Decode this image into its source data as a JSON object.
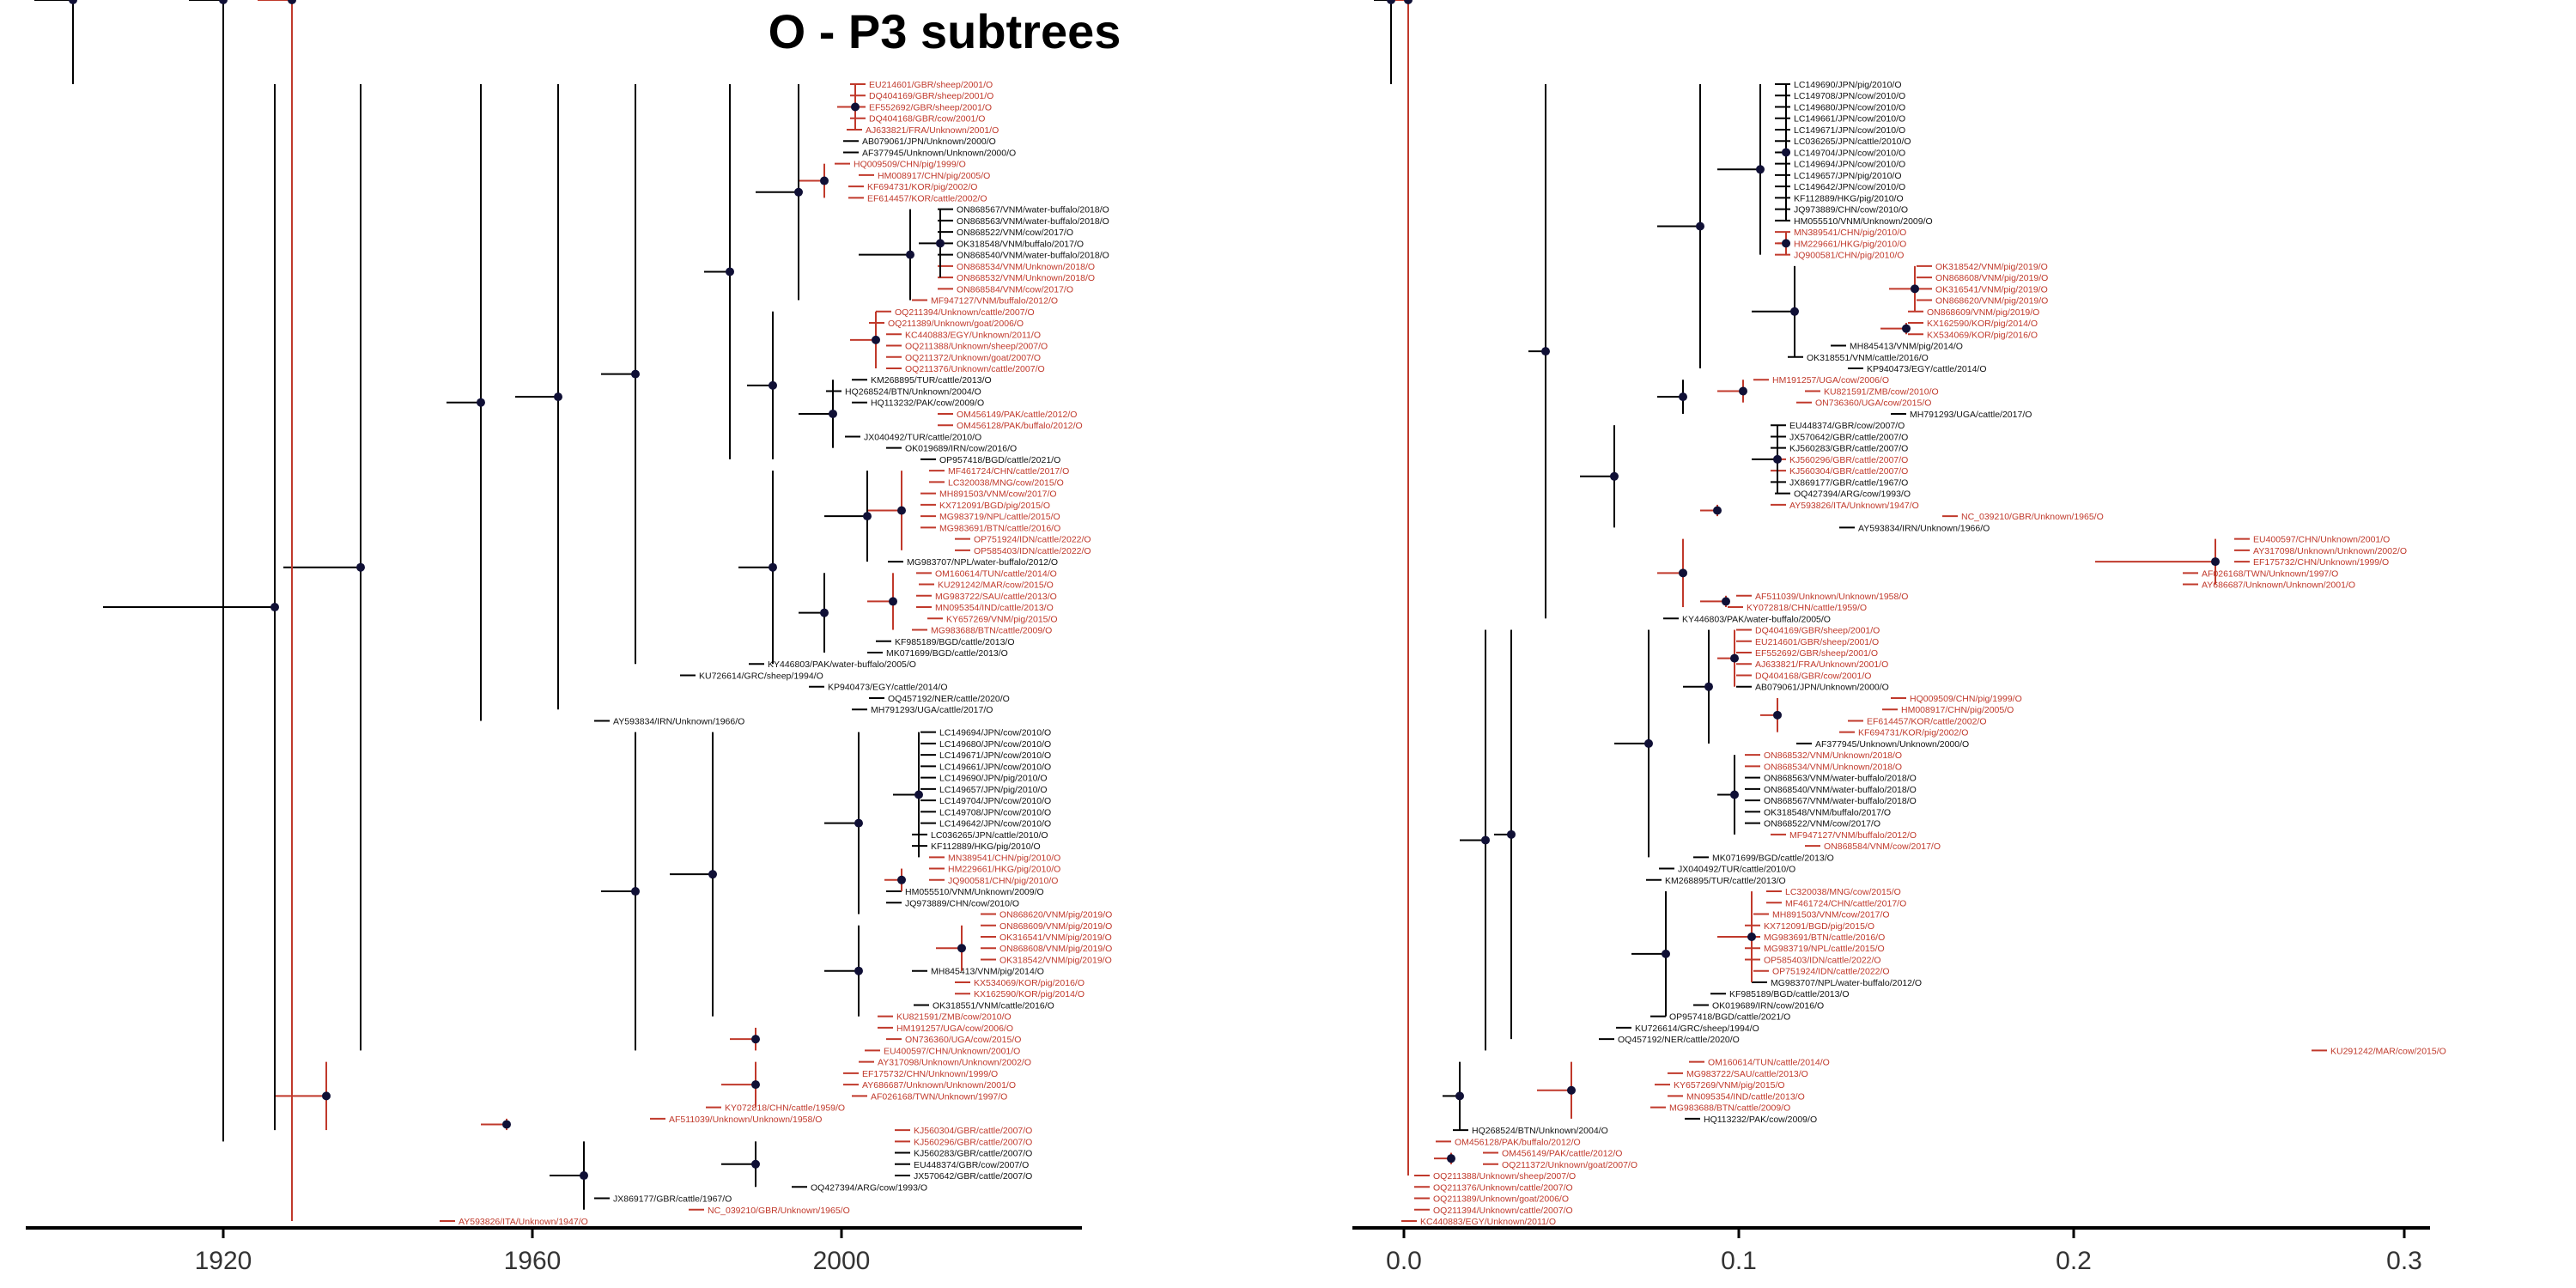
{
  "page": {
    "title": "O - P3 subtrees"
  },
  "colors": {
    "black_branch": "#000000",
    "red_branch": "#c0392b",
    "node": "#101036",
    "axis": "#000000"
  },
  "left_tree": {
    "axis_ticks": [
      "1920",
      "1960",
      "2000"
    ],
    "leaves": [
      {
        "label": "EU214601/GBR/sheep/2001/O",
        "color": "red"
      },
      {
        "label": "DQ404169/GBR/sheep/2001/O",
        "color": "red"
      },
      {
        "label": "EF552692/GBR/sheep/2001/O",
        "color": "red"
      },
      {
        "label": "DQ404168/GBR/cow/2001/O",
        "color": "red"
      },
      {
        "label": "AJ633821/FRA/Unknown/2001/O",
        "color": "red"
      },
      {
        "label": "AB079061/JPN/Unknown/2000/O",
        "color": "black"
      },
      {
        "label": "AF377945/Unknown/Unknown/2000/O",
        "color": "black"
      },
      {
        "label": "HQ009509/CHN/pig/1999/O",
        "color": "red"
      },
      {
        "label": "HM008917/CHN/pig/2005/O",
        "color": "red"
      },
      {
        "label": "KF694731/KOR/pig/2002/O",
        "color": "red"
      },
      {
        "label": "EF614457/KOR/cattle/2002/O",
        "color": "red"
      },
      {
        "label": "ON868567/VNM/water-buffalo/2018/O",
        "color": "black"
      },
      {
        "label": "ON868563/VNM/water-buffalo/2018/O",
        "color": "black"
      },
      {
        "label": "ON868522/VNM/cow/2017/O",
        "color": "black"
      },
      {
        "label": "OK318548/VNM/buffalo/2017/O",
        "color": "black"
      },
      {
        "label": "ON868540/VNM/water-buffalo/2018/O",
        "color": "black"
      },
      {
        "label": "ON868534/VNM/Unknown/2018/O",
        "color": "red"
      },
      {
        "label": "ON868532/VNM/Unknown/2018/O",
        "color": "red"
      },
      {
        "label": "ON868584/VNM/cow/2017/O",
        "color": "red"
      },
      {
        "label": "MF947127/VNM/buffalo/2012/O",
        "color": "red"
      },
      {
        "label": "OQ211394/Unknown/cattle/2007/O",
        "color": "red"
      },
      {
        "label": "OQ211389/Unknown/goat/2006/O",
        "color": "red"
      },
      {
        "label": "KC440883/EGY/Unknown/2011/O",
        "color": "red"
      },
      {
        "label": "OQ211388/Unknown/sheep/2007/O",
        "color": "red"
      },
      {
        "label": "OQ211372/Unknown/goat/2007/O",
        "color": "red"
      },
      {
        "label": "OQ211376/Unknown/cattle/2007/O",
        "color": "red"
      },
      {
        "label": "KM268895/TUR/cattle/2013/O",
        "color": "black"
      },
      {
        "label": "HQ268524/BTN/Unknown/2004/O",
        "color": "black"
      },
      {
        "label": "HQ113232/PAK/cow/2009/O",
        "color": "black"
      },
      {
        "label": "OM456149/PAK/cattle/2012/O",
        "color": "red"
      },
      {
        "label": "OM456128/PAK/buffalo/2012/O",
        "color": "red"
      },
      {
        "label": "JX040492/TUR/cattle/2010/O",
        "color": "black"
      },
      {
        "label": "OK019689/IRN/cow/2016/O",
        "color": "black"
      },
      {
        "label": "OP957418/BGD/cattle/2021/O",
        "color": "black"
      },
      {
        "label": "MF461724/CHN/cattle/2017/O",
        "color": "red"
      },
      {
        "label": "LC320038/MNG/cow/2015/O",
        "color": "red"
      },
      {
        "label": "MH891503/VNM/cow/2017/O",
        "color": "red"
      },
      {
        "label": "KX712091/BGD/pig/2015/O",
        "color": "red"
      },
      {
        "label": "MG983719/NPL/cattle/2015/O",
        "color": "red"
      },
      {
        "label": "MG983691/BTN/cattle/2016/O",
        "color": "red"
      },
      {
        "label": "OP751924/IDN/cattle/2022/O",
        "color": "red"
      },
      {
        "label": "OP585403/IDN/cattle/2022/O",
        "color": "red"
      },
      {
        "label": "MG983707/NPL/water-buffalo/2012/O",
        "color": "black"
      },
      {
        "label": "OM160614/TUN/cattle/2014/O",
        "color": "red"
      },
      {
        "label": "KU291242/MAR/cow/2015/O",
        "color": "red"
      },
      {
        "label": "MG983722/SAU/cattle/2013/O",
        "color": "red"
      },
      {
        "label": "MN095354/IND/cattle/2013/O",
        "color": "red"
      },
      {
        "label": "KY657269/VNM/pig/2015/O",
        "color": "red"
      },
      {
        "label": "MG983688/BTN/cattle/2009/O",
        "color": "red"
      },
      {
        "label": "KF985189/BGD/cattle/2013/O",
        "color": "black"
      },
      {
        "label": "MK071699/BGD/cattle/2013/O",
        "color": "black"
      },
      {
        "label": "KY446803/PAK/water-buffalo/2005/O",
        "color": "black"
      },
      {
        "label": "KU726614/GRC/sheep/1994/O",
        "color": "black"
      },
      {
        "label": "KP940473/EGY/cattle/2014/O",
        "color": "black"
      },
      {
        "label": "OQ457192/NER/cattle/2020/O",
        "color": "black"
      },
      {
        "label": "MH791293/UGA/cattle/2017/O",
        "color": "black"
      },
      {
        "label": "AY593834/IRN/Unknown/1966/O",
        "color": "black"
      },
      {
        "label": "LC149694/JPN/cow/2010/O",
        "color": "black"
      },
      {
        "label": "LC149680/JPN/cow/2010/O",
        "color": "black"
      },
      {
        "label": "LC149671/JPN/cow/2010/O",
        "color": "black"
      },
      {
        "label": "LC149661/JPN/cow/2010/O",
        "color": "black"
      },
      {
        "label": "LC149690/JPN/pig/2010/O",
        "color": "black"
      },
      {
        "label": "LC149657/JPN/pig/2010/O",
        "color": "black"
      },
      {
        "label": "LC149704/JPN/cow/2010/O",
        "color": "black"
      },
      {
        "label": "LC149708/JPN/cow/2010/O",
        "color": "black"
      },
      {
        "label": "LC149642/JPN/cow/2010/O",
        "color": "black"
      },
      {
        "label": "LC036265/JPN/cattle/2010/O",
        "color": "black"
      },
      {
        "label": "KF112889/HKG/pig/2010/O",
        "color": "black"
      },
      {
        "label": "MN389541/CHN/pig/2010/O",
        "color": "red"
      },
      {
        "label": "HM229661/HKG/pig/2010/O",
        "color": "red"
      },
      {
        "label": "JQ900581/CHN/pig/2010/O",
        "color": "red"
      },
      {
        "label": "HM055510/VNM/Unknown/2009/O",
        "color": "black"
      },
      {
        "label": "JQ973889/CHN/cow/2010/O",
        "color": "black"
      },
      {
        "label": "ON868620/VNM/pig/2019/O",
        "color": "red"
      },
      {
        "label": "ON868609/VNM/pig/2019/O",
        "color": "red"
      },
      {
        "label": "OK316541/VNM/pig/2019/O",
        "color": "red"
      },
      {
        "label": "ON868608/VNM/pig/2019/O",
        "color": "red"
      },
      {
        "label": "OK318542/VNM/pig/2019/O",
        "color": "red"
      },
      {
        "label": "MH845413/VNM/pig/2014/O",
        "color": "black"
      },
      {
        "label": "KX534069/KOR/pig/2016/O",
        "color": "red"
      },
      {
        "label": "KX162590/KOR/pig/2014/O",
        "color": "red"
      },
      {
        "label": "OK318551/VNM/cattle/2016/O",
        "color": "black"
      },
      {
        "label": "KU821591/ZMB/cow/2010/O",
        "color": "red"
      },
      {
        "label": "HM191257/UGA/cow/2006/O",
        "color": "red"
      },
      {
        "label": "ON736360/UGA/cow/2015/O",
        "color": "red"
      },
      {
        "label": "EU400597/CHN/Unknown/2001/O",
        "color": "red"
      },
      {
        "label": "AY317098/Unknown/Unknown/2002/O",
        "color": "red"
      },
      {
        "label": "EF175732/CHN/Unknown/1999/O",
        "color": "red"
      },
      {
        "label": "AY686687/Unknown/Unknown/2001/O",
        "color": "red"
      },
      {
        "label": "AF026168/TWN/Unknown/1997/O",
        "color": "red"
      },
      {
        "label": "KY072818/CHN/cattle/1959/O",
        "color": "red"
      },
      {
        "label": "AF511039/Unknown/Unknown/1958/O",
        "color": "red"
      },
      {
        "label": "KJ560304/GBR/cattle/2007/O",
        "color": "red"
      },
      {
        "label": "KJ560296/GBR/cattle/2007/O",
        "color": "red"
      },
      {
        "label": "KJ560283/GBR/cattle/2007/O",
        "color": "black"
      },
      {
        "label": "EU448374/GBR/cow/2007/O",
        "color": "black"
      },
      {
        "label": "JX570642/GBR/cattle/2007/O",
        "color": "black"
      },
      {
        "label": "OQ427394/ARG/cow/1993/O",
        "color": "black"
      },
      {
        "label": "JX869177/GBR/cattle/1967/O",
        "color": "black"
      },
      {
        "label": "NC_039210/GBR/Unknown/1965/O",
        "color": "red"
      },
      {
        "label": "AY593826/ITA/Unknown/1947/O",
        "color": "red"
      }
    ]
  },
  "right_tree": {
    "axis_ticks": [
      "0.0",
      "0.1",
      "0.2",
      "0.3"
    ],
    "leaves": [
      {
        "label": "LC149690/JPN/pig/2010/O",
        "color": "black"
      },
      {
        "label": "LC149708/JPN/cow/2010/O",
        "color": "black"
      },
      {
        "label": "LC149680/JPN/cow/2010/O",
        "color": "black"
      },
      {
        "label": "LC149661/JPN/cow/2010/O",
        "color": "black"
      },
      {
        "label": "LC149671/JPN/cow/2010/O",
        "color": "black"
      },
      {
        "label": "LC036265/JPN/cattle/2010/O",
        "color": "black"
      },
      {
        "label": "LC149704/JPN/cow/2010/O",
        "color": "black"
      },
      {
        "label": "LC149694/JPN/cow/2010/O",
        "color": "black"
      },
      {
        "label": "LC149657/JPN/pig/2010/O",
        "color": "black"
      },
      {
        "label": "LC149642/JPN/cow/2010/O",
        "color": "black"
      },
      {
        "label": "KF112889/HKG/pig/2010/O",
        "color": "black"
      },
      {
        "label": "JQ973889/CHN/cow/2010/O",
        "color": "black"
      },
      {
        "label": "HM055510/VNM/Unknown/2009/O",
        "color": "black"
      },
      {
        "label": "MN389541/CHN/pig/2010/O",
        "color": "red"
      },
      {
        "label": "HM229661/HKG/pig/2010/O",
        "color": "red"
      },
      {
        "label": "JQ900581/CHN/pig/2010/O",
        "color": "red"
      },
      {
        "label": "OK318542/VNM/pig/2019/O",
        "color": "red"
      },
      {
        "label": "ON868608/VNM/pig/2019/O",
        "color": "red"
      },
      {
        "label": "OK316541/VNM/pig/2019/O",
        "color": "red"
      },
      {
        "label": "ON868620/VNM/pig/2019/O",
        "color": "red"
      },
      {
        "label": "ON868609/VNM/pig/2019/O",
        "color": "red"
      },
      {
        "label": "KX162590/KOR/pig/2014/O",
        "color": "red"
      },
      {
        "label": "KX534069/KOR/pig/2016/O",
        "color": "red"
      },
      {
        "label": "MH845413/VNM/pig/2014/O",
        "color": "black"
      },
      {
        "label": "OK318551/VNM/cattle/2016/O",
        "color": "black"
      },
      {
        "label": "KP940473/EGY/cattle/2014/O",
        "color": "black"
      },
      {
        "label": "HM191257/UGA/cow/2006/O",
        "color": "red"
      },
      {
        "label": "KU821591/ZMB/cow/2010/O",
        "color": "red"
      },
      {
        "label": "ON736360/UGA/cow/2015/O",
        "color": "red"
      },
      {
        "label": "MH791293/UGA/cattle/2017/O",
        "color": "black"
      },
      {
        "label": "EU448374/GBR/cow/2007/O",
        "color": "black"
      },
      {
        "label": "JX570642/GBR/cattle/2007/O",
        "color": "black"
      },
      {
        "label": "KJ560283/GBR/cattle/2007/O",
        "color": "black"
      },
      {
        "label": "KJ560296/GBR/cattle/2007/O",
        "color": "red"
      },
      {
        "label": "KJ560304/GBR/cattle/2007/O",
        "color": "red"
      },
      {
        "label": "JX869177/GBR/cattle/1967/O",
        "color": "black"
      },
      {
        "label": "OQ427394/ARG/cow/1993/O",
        "color": "black"
      },
      {
        "label": "AY593826/ITA/Unknown/1947/O",
        "color": "red"
      },
      {
        "label": "NC_039210/GBR/Unknown/1965/O",
        "color": "red"
      },
      {
        "label": "AY593834/IRN/Unknown/1966/O",
        "color": "black"
      },
      {
        "label": "EU400597/CHN/Unknown/2001/O",
        "color": "red"
      },
      {
        "label": "AY317098/Unknown/Unknown/2002/O",
        "color": "red"
      },
      {
        "label": "EF175732/CHN/Unknown/1999/O",
        "color": "red"
      },
      {
        "label": "AF026168/TWN/Unknown/1997/O",
        "color": "red"
      },
      {
        "label": "AY686687/Unknown/Unknown/2001/O",
        "color": "red"
      },
      {
        "label": "AF511039/Unknown/Unknown/1958/O",
        "color": "red"
      },
      {
        "label": "KY072818/CHN/cattle/1959/O",
        "color": "red"
      },
      {
        "label": "KY446803/PAK/water-buffalo/2005/O",
        "color": "black"
      },
      {
        "label": "DQ404169/GBR/sheep/2001/O",
        "color": "red"
      },
      {
        "label": "EU214601/GBR/sheep/2001/O",
        "color": "red"
      },
      {
        "label": "EF552692/GBR/sheep/2001/O",
        "color": "red"
      },
      {
        "label": "AJ633821/FRA/Unknown/2001/O",
        "color": "red"
      },
      {
        "label": "DQ404168/GBR/cow/2001/O",
        "color": "red"
      },
      {
        "label": "AB079061/JPN/Unknown/2000/O",
        "color": "black"
      },
      {
        "label": "HQ009509/CHN/pig/1999/O",
        "color": "red"
      },
      {
        "label": "HM008917/CHN/pig/2005/O",
        "color": "red"
      },
      {
        "label": "EF614457/KOR/cattle/2002/O",
        "color": "red"
      },
      {
        "label": "KF694731/KOR/pig/2002/O",
        "color": "red"
      },
      {
        "label": "AF377945/Unknown/Unknown/2000/O",
        "color": "black"
      },
      {
        "label": "ON868532/VNM/Unknown/2018/O",
        "color": "red"
      },
      {
        "label": "ON868534/VNM/Unknown/2018/O",
        "color": "red"
      },
      {
        "label": "ON868563/VNM/water-buffalo/2018/O",
        "color": "black"
      },
      {
        "label": "ON868540/VNM/water-buffalo/2018/O",
        "color": "black"
      },
      {
        "label": "ON868567/VNM/water-buffalo/2018/O",
        "color": "black"
      },
      {
        "label": "OK318548/VNM/buffalo/2017/O",
        "color": "black"
      },
      {
        "label": "ON868522/VNM/cow/2017/O",
        "color": "black"
      },
      {
        "label": "MF947127/VNM/buffalo/2012/O",
        "color": "red"
      },
      {
        "label": "ON868584/VNM/cow/2017/O",
        "color": "red"
      },
      {
        "label": "MK071699/BGD/cattle/2013/O",
        "color": "black"
      },
      {
        "label": "JX040492/TUR/cattle/2010/O",
        "color": "black"
      },
      {
        "label": "KM268895/TUR/cattle/2013/O",
        "color": "black"
      },
      {
        "label": "LC320038/MNG/cow/2015/O",
        "color": "red"
      },
      {
        "label": "MF461724/CHN/cattle/2017/O",
        "color": "red"
      },
      {
        "label": "MH891503/VNM/cow/2017/O",
        "color": "red"
      },
      {
        "label": "KX712091/BGD/pig/2015/O",
        "color": "red"
      },
      {
        "label": "MG983691/BTN/cattle/2016/O",
        "color": "red"
      },
      {
        "label": "MG983719/NPL/cattle/2015/O",
        "color": "red"
      },
      {
        "label": "OP585403/IDN/cattle/2022/O",
        "color": "red"
      },
      {
        "label": "OP751924/IDN/cattle/2022/O",
        "color": "red"
      },
      {
        "label": "MG983707/NPL/water-buffalo/2012/O",
        "color": "black"
      },
      {
        "label": "KF985189/BGD/cattle/2013/O",
        "color": "black"
      },
      {
        "label": "OK019689/IRN/cow/2016/O",
        "color": "black"
      },
      {
        "label": "OP957418/BGD/cattle/2021/O",
        "color": "black"
      },
      {
        "label": "KU726614/GRC/sheep/1994/O",
        "color": "black"
      },
      {
        "label": "OQ457192/NER/cattle/2020/O",
        "color": "black"
      },
      {
        "label": "KU291242/MAR/cow/2015/O",
        "color": "red"
      },
      {
        "label": "OM160614/TUN/cattle/2014/O",
        "color": "red"
      },
      {
        "label": "MG983722/SAU/cattle/2013/O",
        "color": "red"
      },
      {
        "label": "KY657269/VNM/pig/2015/O",
        "color": "red"
      },
      {
        "label": "MN095354/IND/cattle/2013/O",
        "color": "red"
      },
      {
        "label": "MG983688/BTN/cattle/2009/O",
        "color": "red"
      },
      {
        "label": "HQ113232/PAK/cow/2009/O",
        "color": "black"
      },
      {
        "label": "HQ268524/BTN/Unknown/2004/O",
        "color": "black"
      },
      {
        "label": "OM456128/PAK/buffalo/2012/O",
        "color": "red"
      },
      {
        "label": "OM456149/PAK/cattle/2012/O",
        "color": "red"
      },
      {
        "label": "OQ211372/Unknown/goat/2007/O",
        "color": "red"
      },
      {
        "label": "OQ211388/Unknown/sheep/2007/O",
        "color": "red"
      },
      {
        "label": "OQ211376/Unknown/cattle/2007/O",
        "color": "red"
      },
      {
        "label": "OQ211389/Unknown/goat/2006/O",
        "color": "red"
      },
      {
        "label": "OQ211394/Unknown/cattle/2007/O",
        "color": "red"
      },
      {
        "label": "KC440883/EGY/Unknown/2011/O",
        "color": "red"
      }
    ]
  }
}
